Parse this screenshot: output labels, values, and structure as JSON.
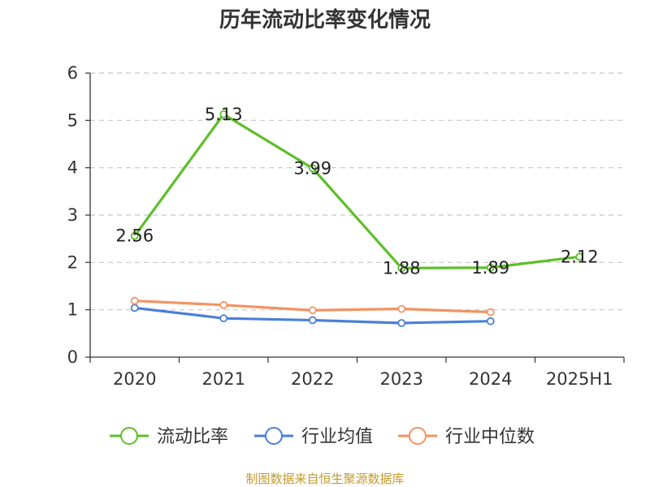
{
  "chart_data": {
    "type": "line",
    "title": "历年流动比率变化情况",
    "categories": [
      "2020",
      "2021",
      "2022",
      "2023",
      "2024",
      "2025H1"
    ],
    "ylim": [
      0,
      6
    ],
    "yticks": [
      "0",
      "1",
      "2",
      "3",
      "4",
      "5",
      "6"
    ],
    "grid": true,
    "legend_position": "bottom",
    "series": [
      {
        "name": "流动比率",
        "color": "#5dbf2a",
        "values": [
          2.56,
          5.13,
          3.99,
          1.88,
          1.89,
          2.12
        ],
        "labels": [
          "2.56",
          "5.13",
          "3.99",
          "1.88",
          "1.89",
          "2.12"
        ]
      },
      {
        "name": "行业均值",
        "color": "#4a7fd8",
        "values": [
          1.04,
          0.82,
          0.78,
          0.72,
          0.76,
          null
        ]
      },
      {
        "name": "行业中位数",
        "color": "#f39362",
        "values": [
          1.19,
          1.1,
          0.99,
          1.02,
          0.95,
          null
        ]
      }
    ]
  },
  "source_text": "制图数据来自恒生聚源数据库"
}
